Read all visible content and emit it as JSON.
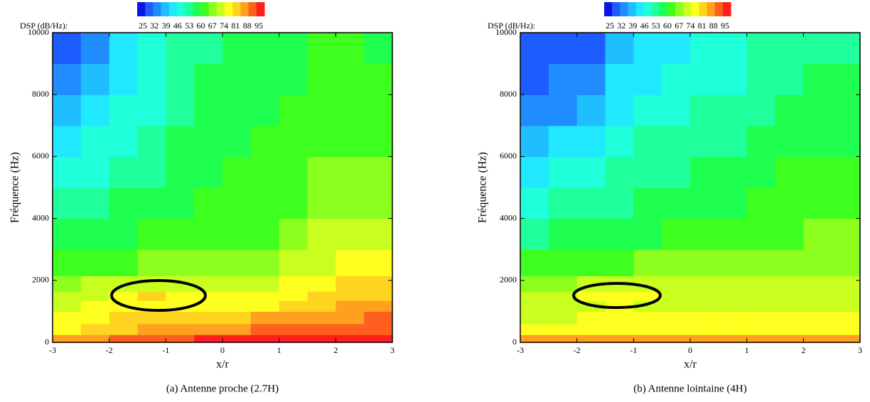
{
  "chart_data": [
    {
      "type": "heatmap",
      "colorbar_label": "DSP (dB/Hz):",
      "zlim": [
        25,
        95
      ],
      "colorbar_ticks": [
        25,
        32,
        39,
        46,
        53,
        60,
        67,
        74,
        81,
        88,
        95
      ],
      "colorscale": [
        "#0a14e6",
        "#1f5cff",
        "#1f8cff",
        "#1fbfff",
        "#1fe8ff",
        "#1fffd9",
        "#1fff9c",
        "#1fff50",
        "#3fff1f",
        "#8cff1f",
        "#c8ff1f",
        "#ffff1f",
        "#ffd41f",
        "#ffa01f",
        "#ff601f",
        "#ff1f1f"
      ],
      "xlabel": "x/r",
      "ylabel": "Fréquence (Hz)",
      "caption": "(a) Antenne proche (2.7H)",
      "xlim": [
        -3,
        3
      ],
      "ylim": [
        0,
        10000
      ],
      "xticks": [
        -3,
        -2,
        -1,
        0,
        1,
        2,
        3
      ],
      "yticks": [
        0,
        2000,
        4000,
        6000,
        8000,
        10000
      ],
      "x": [
        -2.75,
        -2.25,
        -1.75,
        -1.25,
        -0.75,
        -0.25,
        0.25,
        0.75,
        1.25,
        1.75,
        2.25,
        2.75
      ],
      "y": [
        100,
        400,
        800,
        1200,
        1500,
        1800,
        2500,
        3500,
        4500,
        5500,
        6500,
        7500,
        8500,
        9500
      ],
      "z": [
        [
          84,
          86,
          88,
          89,
          90,
          91,
          91,
          92,
          92,
          92,
          93,
          93
        ],
        [
          76,
          78,
          80,
          82,
          84,
          85,
          86,
          87,
          88,
          89,
          90,
          90
        ],
        [
          74,
          76,
          78,
          79,
          80,
          80,
          81,
          82,
          83,
          84,
          86,
          87
        ],
        [
          72,
          74,
          76,
          77,
          76,
          75,
          76,
          77,
          78,
          80,
          83,
          84
        ],
        [
          70,
          72,
          76,
          78,
          77,
          74,
          74,
          75,
          76,
          78,
          81,
          81
        ],
        [
          68,
          70,
          72,
          73,
          72,
          71,
          72,
          73,
          74,
          76,
          78,
          78
        ],
        [
          62,
          63,
          64,
          65,
          66,
          67,
          67,
          68,
          70,
          72,
          74,
          74
        ],
        [
          56,
          58,
          59,
          60,
          61,
          62,
          63,
          64,
          66,
          69,
          70,
          70
        ],
        [
          52,
          54,
          56,
          58,
          59,
          60,
          61,
          62,
          64,
          67,
          68,
          67
        ],
        [
          48,
          50,
          53,
          55,
          57,
          59,
          60,
          61,
          63,
          65,
          66,
          65
        ],
        [
          45,
          47,
          50,
          53,
          56,
          58,
          59,
          60,
          61,
          63,
          64,
          63
        ],
        [
          42,
          45,
          48,
          51,
          54,
          57,
          58,
          59,
          60,
          62,
          62,
          61
        ],
        [
          38,
          42,
          46,
          50,
          53,
          56,
          57,
          58,
          59,
          61,
          61,
          60
        ],
        [
          33,
          38,
          44,
          48,
          52,
          55,
          56,
          57,
          58,
          60,
          60,
          58
        ]
      ]
    },
    {
      "type": "heatmap",
      "colorbar_label": "DSP (dB/Hz):",
      "zlim": [
        25,
        95
      ],
      "colorbar_ticks": [
        25,
        32,
        39,
        46,
        53,
        60,
        67,
        74,
        81,
        88,
        95
      ],
      "colorscale": [
        "#0a14e6",
        "#1f5cff",
        "#1f8cff",
        "#1fbfff",
        "#1fe8ff",
        "#1fffd9",
        "#1fff9c",
        "#1fff50",
        "#3fff1f",
        "#8cff1f",
        "#c8ff1f",
        "#ffff1f",
        "#ffd41f",
        "#ffa01f",
        "#ff601f",
        "#ff1f1f"
      ],
      "xlabel": "x/r",
      "ylabel": "Fréquence (Hz)",
      "caption": "(b) Antenne lointaine (4H)",
      "xlim": [
        -3,
        3
      ],
      "ylim": [
        0,
        10000
      ],
      "xticks": [
        -3,
        -2,
        -1,
        0,
        1,
        2,
        3
      ],
      "yticks": [
        0,
        2000,
        4000,
        6000,
        8000,
        10000
      ],
      "x": [
        -2.75,
        -2.25,
        -1.75,
        -1.25,
        -0.75,
        -0.25,
        0.25,
        0.75,
        1.25,
        1.75,
        2.25,
        2.75
      ],
      "y": [
        100,
        400,
        800,
        1200,
        1500,
        1800,
        2500,
        3500,
        4500,
        5500,
        6500,
        7500,
        8500,
        9500
      ],
      "z": [
        [
          82,
          83,
          85,
          86,
          86,
          86,
          85,
          84,
          84,
          84,
          84,
          84
        ],
        [
          74,
          75,
          76,
          77,
          77,
          77,
          77,
          76,
          76,
          76,
          76,
          76
        ],
        [
          72,
          73,
          74,
          75,
          75,
          75,
          75,
          74,
          74,
          74,
          74,
          74
        ],
        [
          70,
          71,
          73,
          74,
          73,
          72,
          72,
          72,
          72,
          72,
          73,
          73
        ],
        [
          69,
          70,
          74,
          76,
          75,
          72,
          71,
          71,
          71,
          71,
          72,
          72
        ],
        [
          67,
          68,
          70,
          71,
          70,
          69,
          69,
          69,
          70,
          70,
          71,
          71
        ],
        [
          62,
          63,
          63,
          64,
          65,
          66,
          66,
          66,
          67,
          68,
          68,
          68
        ],
        [
          55,
          56,
          57,
          58,
          59,
          60,
          61,
          62,
          63,
          64,
          65,
          65
        ],
        [
          50,
          52,
          54,
          55,
          56,
          57,
          58,
          59,
          60,
          62,
          63,
          63
        ],
        [
          46,
          48,
          50,
          52,
          54,
          55,
          56,
          57,
          58,
          60,
          61,
          61
        ],
        [
          41,
          43,
          46,
          49,
          52,
          53,
          54,
          55,
          57,
          58,
          59,
          59
        ],
        [
          37,
          38,
          42,
          46,
          49,
          51,
          52,
          53,
          55,
          57,
          58,
          58
        ],
        [
          33,
          34,
          38,
          43,
          46,
          48,
          49,
          51,
          53,
          55,
          56,
          56
        ],
        [
          30,
          30,
          33,
          40,
          44,
          46,
          47,
          50,
          52,
          54,
          55,
          55
        ]
      ]
    }
  ]
}
